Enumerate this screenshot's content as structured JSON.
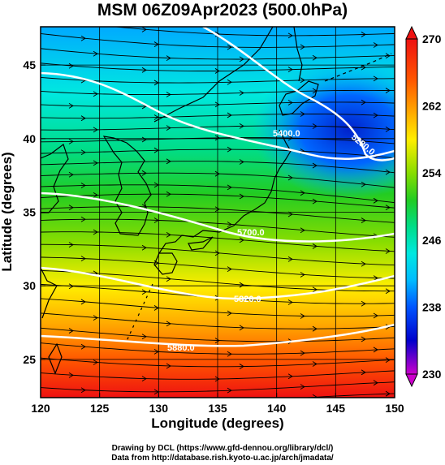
{
  "title": "MSM 06Z09Apr2023 (500.0hPa)",
  "x_axis": {
    "label": "Longitude (degrees)",
    "range": [
      120,
      150
    ],
    "ticks": [
      120,
      125,
      130,
      135,
      140,
      145,
      150
    ],
    "tick_labels": [
      "120",
      "125",
      "130",
      "135",
      "140",
      "145",
      "150"
    ]
  },
  "y_axis": {
    "label": "Latitude  (degrees)",
    "range": [
      22.4,
      47.6
    ],
    "ticks": [
      25,
      30,
      35,
      40,
      45
    ],
    "tick_labels": [
      "25",
      "30",
      "35",
      "40",
      "45"
    ]
  },
  "colorbar": {
    "min": 230,
    "max": 270,
    "labels": [
      "270",
      "262",
      "254",
      "246",
      "238",
      "230"
    ],
    "label_values": [
      270,
      262,
      254,
      246,
      238,
      230
    ],
    "colors": [
      "#cc00cc",
      "#0000cc",
      "#0055ff",
      "#00bbff",
      "#00e8e0",
      "#00dd88",
      "#22cc22",
      "#88dd00",
      "#ffee00",
      "#ffaa00",
      "#ff5500",
      "#ee1111"
    ]
  },
  "contours": {
    "labels": [
      "5400.0",
      "5700.0",
      "5820.0",
      "5880.0",
      "5280.0"
    ],
    "color": "#ffffff"
  },
  "credits": {
    "line1": "Drawing by DCL (https://www.gfd-dennou.org/library/dcl/)",
    "line2": "Data from http://database.rish.kyoto-u.ac.jp/arch/jmadata/"
  }
}
